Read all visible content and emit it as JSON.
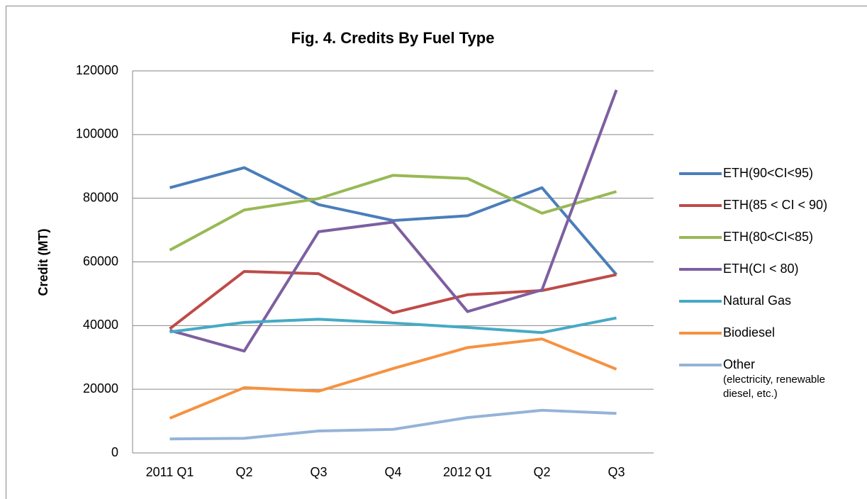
{
  "chart_data": {
    "type": "line",
    "title": "Fig. 4. Credits By Fuel Type",
    "y_label": "Credit (MT)",
    "categories": [
      "2011 Q1",
      "Q2",
      "Q3",
      "Q4",
      "2012 Q1",
      "Q2",
      "Q3"
    ],
    "series": [
      {
        "name": "ETH(90<CI<95)",
        "color": "#4a7ebb",
        "values": [
          83300,
          89600,
          78000,
          73000,
          74500,
          83300,
          56000
        ]
      },
      {
        "name": "ETH(85 < CI < 90)",
        "color": "#be4b48",
        "values": [
          39000,
          57000,
          56300,
          44000,
          49700,
          51000,
          56000
        ]
      },
      {
        "name": "ETH(80<CI<85)",
        "color": "#98b954",
        "values": [
          63700,
          76300,
          79900,
          87200,
          86200,
          75300,
          82100
        ]
      },
      {
        "name": "ETH(CI < 80)",
        "color": "#7d5fa0",
        "values": [
          38500,
          32000,
          69500,
          72500,
          44400,
          51200,
          114000
        ]
      },
      {
        "name": "Natural Gas",
        "color": "#46aac5",
        "values": [
          38000,
          41000,
          42000,
          40800,
          39400,
          37800,
          42400
        ]
      },
      {
        "name": "Biodiesel",
        "color": "#f69240",
        "values": [
          10900,
          20500,
          19400,
          26500,
          33100,
          35800,
          26300
        ]
      },
      {
        "name": "Other",
        "color": "#95b3d7",
        "values": [
          4400,
          4600,
          6900,
          7400,
          11100,
          13400,
          12400
        ]
      }
    ],
    "legend_note": [
      "(electricity, renewable",
      "diesel, etc.)"
    ],
    "ylim": [
      0,
      120000
    ],
    "yticks": [
      0,
      20000,
      40000,
      60000,
      80000,
      100000,
      120000
    ],
    "grid": true,
    "legend": "right"
  }
}
